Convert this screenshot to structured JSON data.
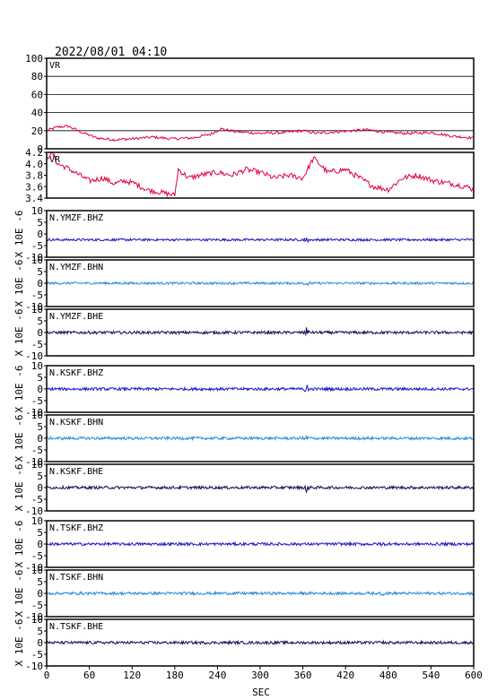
{
  "title": "2022/08/01 04:10",
  "xlabel": "SEC",
  "x_ticks": [
    "0",
    "60",
    "120",
    "180",
    "240",
    "300",
    "360",
    "420",
    "480",
    "540",
    "600"
  ],
  "colors": {
    "vr": "#e0003c",
    "bhz": "#1c1cc8",
    "bhn": "#2a8cd6",
    "bhe": "#12125a",
    "frame": "#000000"
  },
  "chart_data": {
    "type": "line",
    "x_unit": "SEC",
    "xlim": [
      0,
      600
    ],
    "panels": [
      {
        "label": "VR",
        "ylim": [
          0,
          100
        ],
        "y_ticks": [
          "0",
          "20",
          "40",
          "60",
          "80",
          "100"
        ],
        "grid": true,
        "series_color": "vr",
        "points": [
          [
            0,
            20
          ],
          [
            15,
            24
          ],
          [
            30,
            25
          ],
          [
            50,
            18
          ],
          [
            70,
            12
          ],
          [
            95,
            10
          ],
          [
            120,
            11
          ],
          [
            150,
            13
          ],
          [
            175,
            11
          ],
          [
            205,
            12
          ],
          [
            230,
            16
          ],
          [
            245,
            22
          ],
          [
            265,
            19
          ],
          [
            300,
            17
          ],
          [
            335,
            18
          ],
          [
            360,
            20
          ],
          [
            380,
            17
          ],
          [
            410,
            19
          ],
          [
            450,
            21
          ],
          [
            480,
            18
          ],
          [
            510,
            17
          ],
          [
            540,
            18
          ],
          [
            570,
            14
          ],
          [
            600,
            12
          ]
        ]
      },
      {
        "label": "VR",
        "ylim": [
          3.4,
          4.2
        ],
        "y_ticks": [
          "3.4",
          "3.6",
          "3.8",
          "4.0",
          "4.2"
        ],
        "grid": false,
        "series_color": "vr",
        "points": [
          [
            0,
            4.1
          ],
          [
            8,
            4.2
          ],
          [
            15,
            4.0
          ],
          [
            25,
            3.95
          ],
          [
            40,
            3.85
          ],
          [
            60,
            3.7
          ],
          [
            80,
            3.75
          ],
          [
            95,
            3.65
          ],
          [
            110,
            3.7
          ],
          [
            125,
            3.65
          ],
          [
            140,
            3.55
          ],
          [
            160,
            3.5
          ],
          [
            180,
            3.45
          ],
          [
            185,
            3.9
          ],
          [
            200,
            3.75
          ],
          [
            215,
            3.8
          ],
          [
            240,
            3.85
          ],
          [
            260,
            3.8
          ],
          [
            280,
            3.9
          ],
          [
            300,
            3.85
          ],
          [
            320,
            3.75
          ],
          [
            340,
            3.8
          ],
          [
            360,
            3.75
          ],
          [
            375,
            4.1
          ],
          [
            395,
            3.85
          ],
          [
            420,
            3.9
          ],
          [
            440,
            3.75
          ],
          [
            460,
            3.6
          ],
          [
            480,
            3.55
          ],
          [
            500,
            3.75
          ],
          [
            520,
            3.8
          ],
          [
            545,
            3.7
          ],
          [
            570,
            3.65
          ],
          [
            590,
            3.6
          ],
          [
            600,
            3.55
          ]
        ]
      },
      {
        "label": "N.YMZF.BHZ",
        "ylabel": "X 10E -6",
        "ylim": [
          -10,
          10
        ],
        "y_ticks": [
          "-10",
          "-5",
          "0",
          "5",
          "10"
        ],
        "grid": false,
        "series_color": "bhz",
        "baseline": -2.5,
        "noise": 0.5,
        "event_at": 365,
        "event_amp": 1.2
      },
      {
        "label": "N.YMZF.BHN",
        "ylabel": "X 10E -6",
        "ylim": [
          -10,
          10
        ],
        "y_ticks": [
          "-10",
          "-5",
          "0",
          "5",
          "10"
        ],
        "grid": false,
        "series_color": "bhn",
        "baseline": 0,
        "noise": 0.5,
        "event_at": 365,
        "event_amp": 1.6
      },
      {
        "label": "N.YMZF.BHE",
        "ylabel": "X 10E -6",
        "ylim": [
          -10,
          10
        ],
        "y_ticks": [
          "-10",
          "-5",
          "0",
          "5",
          "10"
        ],
        "grid": false,
        "series_color": "bhe",
        "baseline": 0,
        "noise": 0.6,
        "event_at": 365,
        "event_amp": 2.2
      },
      {
        "label": "N.KSKF.BHZ",
        "ylabel": "X 10E -6",
        "ylim": [
          -10,
          10
        ],
        "y_ticks": [
          "-10",
          "-5",
          "0",
          "5",
          "10"
        ],
        "grid": false,
        "series_color": "bhz",
        "baseline": 0,
        "noise": 0.6,
        "event_at": 365,
        "event_amp": 1.8
      },
      {
        "label": "N.KSKF.BHN",
        "ylabel": "X 10E -6",
        "ylim": [
          -10,
          10
        ],
        "y_ticks": [
          "-10",
          "-5",
          "0",
          "5",
          "10"
        ],
        "grid": false,
        "series_color": "bhn",
        "baseline": 0,
        "noise": 0.6,
        "event_at": 365,
        "event_amp": 1.6
      },
      {
        "label": "N.KSKF.BHE",
        "ylabel": "X 10E -6",
        "ylim": [
          -10,
          10
        ],
        "y_ticks": [
          "-10",
          "-5",
          "0",
          "5",
          "10"
        ],
        "grid": false,
        "series_color": "bhe",
        "baseline": 0,
        "noise": 0.6,
        "event_at": 365,
        "event_amp": 2.0
      },
      {
        "label": "N.TSKF.BHZ",
        "ylabel": "X 10E -6",
        "ylim": [
          -10,
          10
        ],
        "y_ticks": [
          "-10",
          "-5",
          "0",
          "5",
          "10"
        ],
        "grid": false,
        "series_color": "bhz",
        "baseline": 0,
        "noise": 0.6,
        "event_at": 470,
        "event_amp": 0.9
      },
      {
        "label": "N.TSKF.BHN",
        "ylabel": "X 10E -6",
        "ylim": [
          -10,
          10
        ],
        "y_ticks": [
          "-10",
          "-5",
          "0",
          "5",
          "10"
        ],
        "grid": false,
        "series_color": "bhn",
        "baseline": 0,
        "noise": 0.6,
        "event_at": 470,
        "event_amp": 1.2
      },
      {
        "label": "N.TSKF.BHE",
        "ylabel": "X 10E -6",
        "ylim": [
          -10,
          10
        ],
        "y_ticks": [
          "-10",
          "-5",
          "0",
          "5",
          "10"
        ],
        "grid": false,
        "series_color": "bhe",
        "baseline": 0,
        "noise": 0.6,
        "event_at": 470,
        "event_amp": 1.0
      }
    ]
  }
}
